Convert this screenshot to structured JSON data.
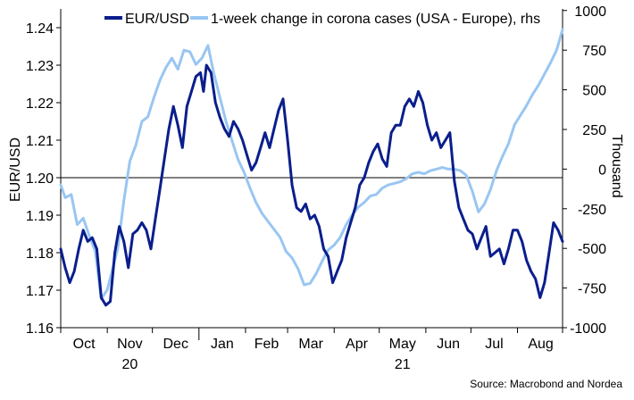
{
  "chart_data": {
    "type": "line",
    "left_axis": {
      "label": "EUR/USD",
      "range": [
        1.16,
        1.245
      ],
      "ticks": [
        "1.16",
        "1.17",
        "1.18",
        "1.19",
        "1.20",
        "1.21",
        "1.22",
        "1.23",
        "1.24"
      ]
    },
    "right_axis": {
      "label": "Thousand",
      "range": [
        -1000,
        1010
      ],
      "ticks": [
        "-1000",
        "-750",
        "-500",
        "-250",
        "0",
        "250",
        "500",
        "750",
        "1000"
      ]
    },
    "x_axis": {
      "range": [
        "2020-10-01",
        "2021-08-31"
      ],
      "month_labels": [
        "Oct",
        "Nov",
        "Dec",
        "Jan",
        "Feb",
        "Mar",
        "Apr",
        "May",
        "Jun",
        "Jul",
        "Aug"
      ],
      "year_labels": [
        {
          "label": "20",
          "under": "Nov"
        },
        {
          "label": "21",
          "under": "May"
        }
      ]
    },
    "reference_line": {
      "axis": "left",
      "value": 1.2
    },
    "legend": {
      "placement": "top",
      "items": [
        "EUR/USD",
        "1-week change in corona cases (USA - Europe), rhs"
      ]
    },
    "series": [
      {
        "name": "EUR/USD",
        "axis": "left",
        "color": "#0a1e8c",
        "points": [
          [
            "2020-10-01",
            1.181
          ],
          [
            "2020-10-04",
            1.176
          ],
          [
            "2020-10-07",
            1.172
          ],
          [
            "2020-10-10",
            1.175
          ],
          [
            "2020-10-13",
            1.181
          ],
          [
            "2020-10-16",
            1.186
          ],
          [
            "2020-10-19",
            1.183
          ],
          [
            "2020-10-22",
            1.184
          ],
          [
            "2020-10-25",
            1.181
          ],
          [
            "2020-10-28",
            1.168
          ],
          [
            "2020-10-31",
            1.166
          ],
          [
            "2020-11-03",
            1.167
          ],
          [
            "2020-11-06",
            1.18
          ],
          [
            "2020-11-09",
            1.187
          ],
          [
            "2020-11-12",
            1.183
          ],
          [
            "2020-11-15",
            1.176
          ],
          [
            "2020-11-18",
            1.185
          ],
          [
            "2020-11-21",
            1.186
          ],
          [
            "2020-11-24",
            1.188
          ],
          [
            "2020-11-27",
            1.186
          ],
          [
            "2020-11-30",
            1.181
          ],
          [
            "2020-12-03",
            1.189
          ],
          [
            "2020-12-06",
            1.197
          ],
          [
            "2020-12-09",
            1.205
          ],
          [
            "2020-12-12",
            1.213
          ],
          [
            "2020-12-15",
            1.219
          ],
          [
            "2020-12-18",
            1.214
          ],
          [
            "2020-12-21",
            1.208
          ],
          [
            "2020-12-24",
            1.219
          ],
          [
            "2020-12-27",
            1.223
          ],
          [
            "2020-12-30",
            1.227
          ],
          [
            "2021-01-02",
            1.228
          ],
          [
            "2021-01-04",
            1.223
          ],
          [
            "2021-01-06",
            1.23
          ],
          [
            "2021-01-09",
            1.228
          ],
          [
            "2021-01-12",
            1.22
          ],
          [
            "2021-01-15",
            1.216
          ],
          [
            "2021-01-18",
            1.213
          ],
          [
            "2021-01-21",
            1.211
          ],
          [
            "2021-01-24",
            1.215
          ],
          [
            "2021-01-27",
            1.213
          ],
          [
            "2021-01-30",
            1.21
          ],
          [
            "2021-02-02",
            1.206
          ],
          [
            "2021-02-05",
            1.202
          ],
          [
            "2021-02-08",
            1.204
          ],
          [
            "2021-02-11",
            1.208
          ],
          [
            "2021-02-14",
            1.212
          ],
          [
            "2021-02-17",
            1.208
          ],
          [
            "2021-02-20",
            1.213
          ],
          [
            "2021-02-23",
            1.218
          ],
          [
            "2021-02-26",
            1.221
          ],
          [
            "2021-03-01",
            1.21
          ],
          [
            "2021-03-04",
            1.198
          ],
          [
            "2021-03-07",
            1.192
          ],
          [
            "2021-03-10",
            1.191
          ],
          [
            "2021-03-13",
            1.193
          ],
          [
            "2021-03-16",
            1.189
          ],
          [
            "2021-03-19",
            1.19
          ],
          [
            "2021-03-22",
            1.187
          ],
          [
            "2021-03-25",
            1.181
          ],
          [
            "2021-03-28",
            1.179
          ],
          [
            "2021-03-31",
            1.172
          ],
          [
            "2021-04-03",
            1.175
          ],
          [
            "2021-04-06",
            1.178
          ],
          [
            "2021-04-09",
            1.184
          ],
          [
            "2021-04-12",
            1.188
          ],
          [
            "2021-04-15",
            1.192
          ],
          [
            "2021-04-18",
            1.198
          ],
          [
            "2021-04-21",
            1.2
          ],
          [
            "2021-04-24",
            1.204
          ],
          [
            "2021-04-27",
            1.207
          ],
          [
            "2021-04-30",
            1.209
          ],
          [
            "2021-05-03",
            1.205
          ],
          [
            "2021-05-06",
            1.203
          ],
          [
            "2021-05-09",
            1.212
          ],
          [
            "2021-05-12",
            1.214
          ],
          [
            "2021-05-15",
            1.214
          ],
          [
            "2021-05-18",
            1.219
          ],
          [
            "2021-05-21",
            1.221
          ],
          [
            "2021-05-24",
            1.219
          ],
          [
            "2021-05-27",
            1.223
          ],
          [
            "2021-05-30",
            1.22
          ],
          [
            "2021-06-02",
            1.214
          ],
          [
            "2021-06-05",
            1.21
          ],
          [
            "2021-06-08",
            1.212
          ],
          [
            "2021-06-11",
            1.208
          ],
          [
            "2021-06-14",
            1.21
          ],
          [
            "2021-06-17",
            1.212
          ],
          [
            "2021-06-20",
            1.199
          ],
          [
            "2021-06-23",
            1.192
          ],
          [
            "2021-06-26",
            1.189
          ],
          [
            "2021-06-29",
            1.186
          ],
          [
            "2021-07-02",
            1.185
          ],
          [
            "2021-07-05",
            1.181
          ],
          [
            "2021-07-08",
            1.184
          ],
          [
            "2021-07-11",
            1.187
          ],
          [
            "2021-07-14",
            1.179
          ],
          [
            "2021-07-17",
            1.18
          ],
          [
            "2021-07-20",
            1.181
          ],
          [
            "2021-07-23",
            1.177
          ],
          [
            "2021-07-26",
            1.181
          ],
          [
            "2021-07-29",
            1.186
          ],
          [
            "2021-08-01",
            1.186
          ],
          [
            "2021-08-04",
            1.183
          ],
          [
            "2021-08-07",
            1.178
          ],
          [
            "2021-08-10",
            1.175
          ],
          [
            "2021-08-13",
            1.173
          ],
          [
            "2021-08-16",
            1.168
          ],
          [
            "2021-08-19",
            1.172
          ],
          [
            "2021-08-22",
            1.18
          ],
          [
            "2021-08-25",
            1.188
          ],
          [
            "2021-08-28",
            1.186
          ],
          [
            "2021-08-31",
            1.183
          ]
        ]
      },
      {
        "name": "1-week change in corona cases (USA - Europe), rhs",
        "axis": "right",
        "color": "#99c6f2",
        "points": [
          [
            "2020-10-01",
            -100
          ],
          [
            "2020-10-04",
            -180
          ],
          [
            "2020-10-08",
            -160
          ],
          [
            "2020-10-12",
            -350
          ],
          [
            "2020-10-16",
            -310
          ],
          [
            "2020-10-20",
            -420
          ],
          [
            "2020-10-24",
            -520
          ],
          [
            "2020-10-28",
            -820
          ],
          [
            "2020-11-01",
            -760
          ],
          [
            "2020-11-04",
            -650
          ],
          [
            "2020-11-08",
            -500
          ],
          [
            "2020-11-12",
            -200
          ],
          [
            "2020-11-16",
            50
          ],
          [
            "2020-11-20",
            150
          ],
          [
            "2020-11-24",
            300
          ],
          [
            "2020-11-28",
            330
          ],
          [
            "2020-12-02",
            450
          ],
          [
            "2020-12-06",
            560
          ],
          [
            "2020-12-10",
            640
          ],
          [
            "2020-12-14",
            700
          ],
          [
            "2020-12-18",
            630
          ],
          [
            "2020-12-22",
            750
          ],
          [
            "2020-12-26",
            740
          ],
          [
            "2020-12-30",
            660
          ],
          [
            "2021-01-03",
            700
          ],
          [
            "2021-01-07",
            780
          ],
          [
            "2021-01-11",
            600
          ],
          [
            "2021-01-15",
            450
          ],
          [
            "2021-01-19",
            300
          ],
          [
            "2021-01-23",
            180
          ],
          [
            "2021-01-27",
            60
          ],
          [
            "2021-01-31",
            -20
          ],
          [
            "2021-02-04",
            -120
          ],
          [
            "2021-02-08",
            -210
          ],
          [
            "2021-02-12",
            -280
          ],
          [
            "2021-02-16",
            -330
          ],
          [
            "2021-02-20",
            -380
          ],
          [
            "2021-02-24",
            -430
          ],
          [
            "2021-02-28",
            -520
          ],
          [
            "2021-03-04",
            -560
          ],
          [
            "2021-03-08",
            -630
          ],
          [
            "2021-03-12",
            -730
          ],
          [
            "2021-03-16",
            -720
          ],
          [
            "2021-03-20",
            -660
          ],
          [
            "2021-03-24",
            -580
          ],
          [
            "2021-03-28",
            -510
          ],
          [
            "2021-04-01",
            -480
          ],
          [
            "2021-04-05",
            -430
          ],
          [
            "2021-04-09",
            -350
          ],
          [
            "2021-04-13",
            -290
          ],
          [
            "2021-04-17",
            -240
          ],
          [
            "2021-04-21",
            -210
          ],
          [
            "2021-04-25",
            -170
          ],
          [
            "2021-04-29",
            -160
          ],
          [
            "2021-05-03",
            -120
          ],
          [
            "2021-05-07",
            -100
          ],
          [
            "2021-05-11",
            -90
          ],
          [
            "2021-05-15",
            -80
          ],
          [
            "2021-05-19",
            -60
          ],
          [
            "2021-05-23",
            -30
          ],
          [
            "2021-05-27",
            -20
          ],
          [
            "2021-05-31",
            -30
          ],
          [
            "2021-06-04",
            -10
          ],
          [
            "2021-06-08",
            0
          ],
          [
            "2021-06-12",
            10
          ],
          [
            "2021-06-16",
            0
          ],
          [
            "2021-06-20",
            0
          ],
          [
            "2021-06-24",
            -10
          ],
          [
            "2021-06-28",
            -40
          ],
          [
            "2021-07-02",
            -140
          ],
          [
            "2021-07-06",
            -270
          ],
          [
            "2021-07-10",
            -220
          ],
          [
            "2021-07-14",
            -130
          ],
          [
            "2021-07-18",
            -10
          ],
          [
            "2021-07-22",
            80
          ],
          [
            "2021-07-26",
            160
          ],
          [
            "2021-07-30",
            280
          ],
          [
            "2021-08-03",
            340
          ],
          [
            "2021-08-07",
            400
          ],
          [
            "2021-08-11",
            470
          ],
          [
            "2021-08-15",
            530
          ],
          [
            "2021-08-19",
            600
          ],
          [
            "2021-08-23",
            670
          ],
          [
            "2021-08-27",
            750
          ],
          [
            "2021-08-31",
            880
          ]
        ]
      }
    ]
  },
  "source": "Source: Macrobond and Nordea"
}
